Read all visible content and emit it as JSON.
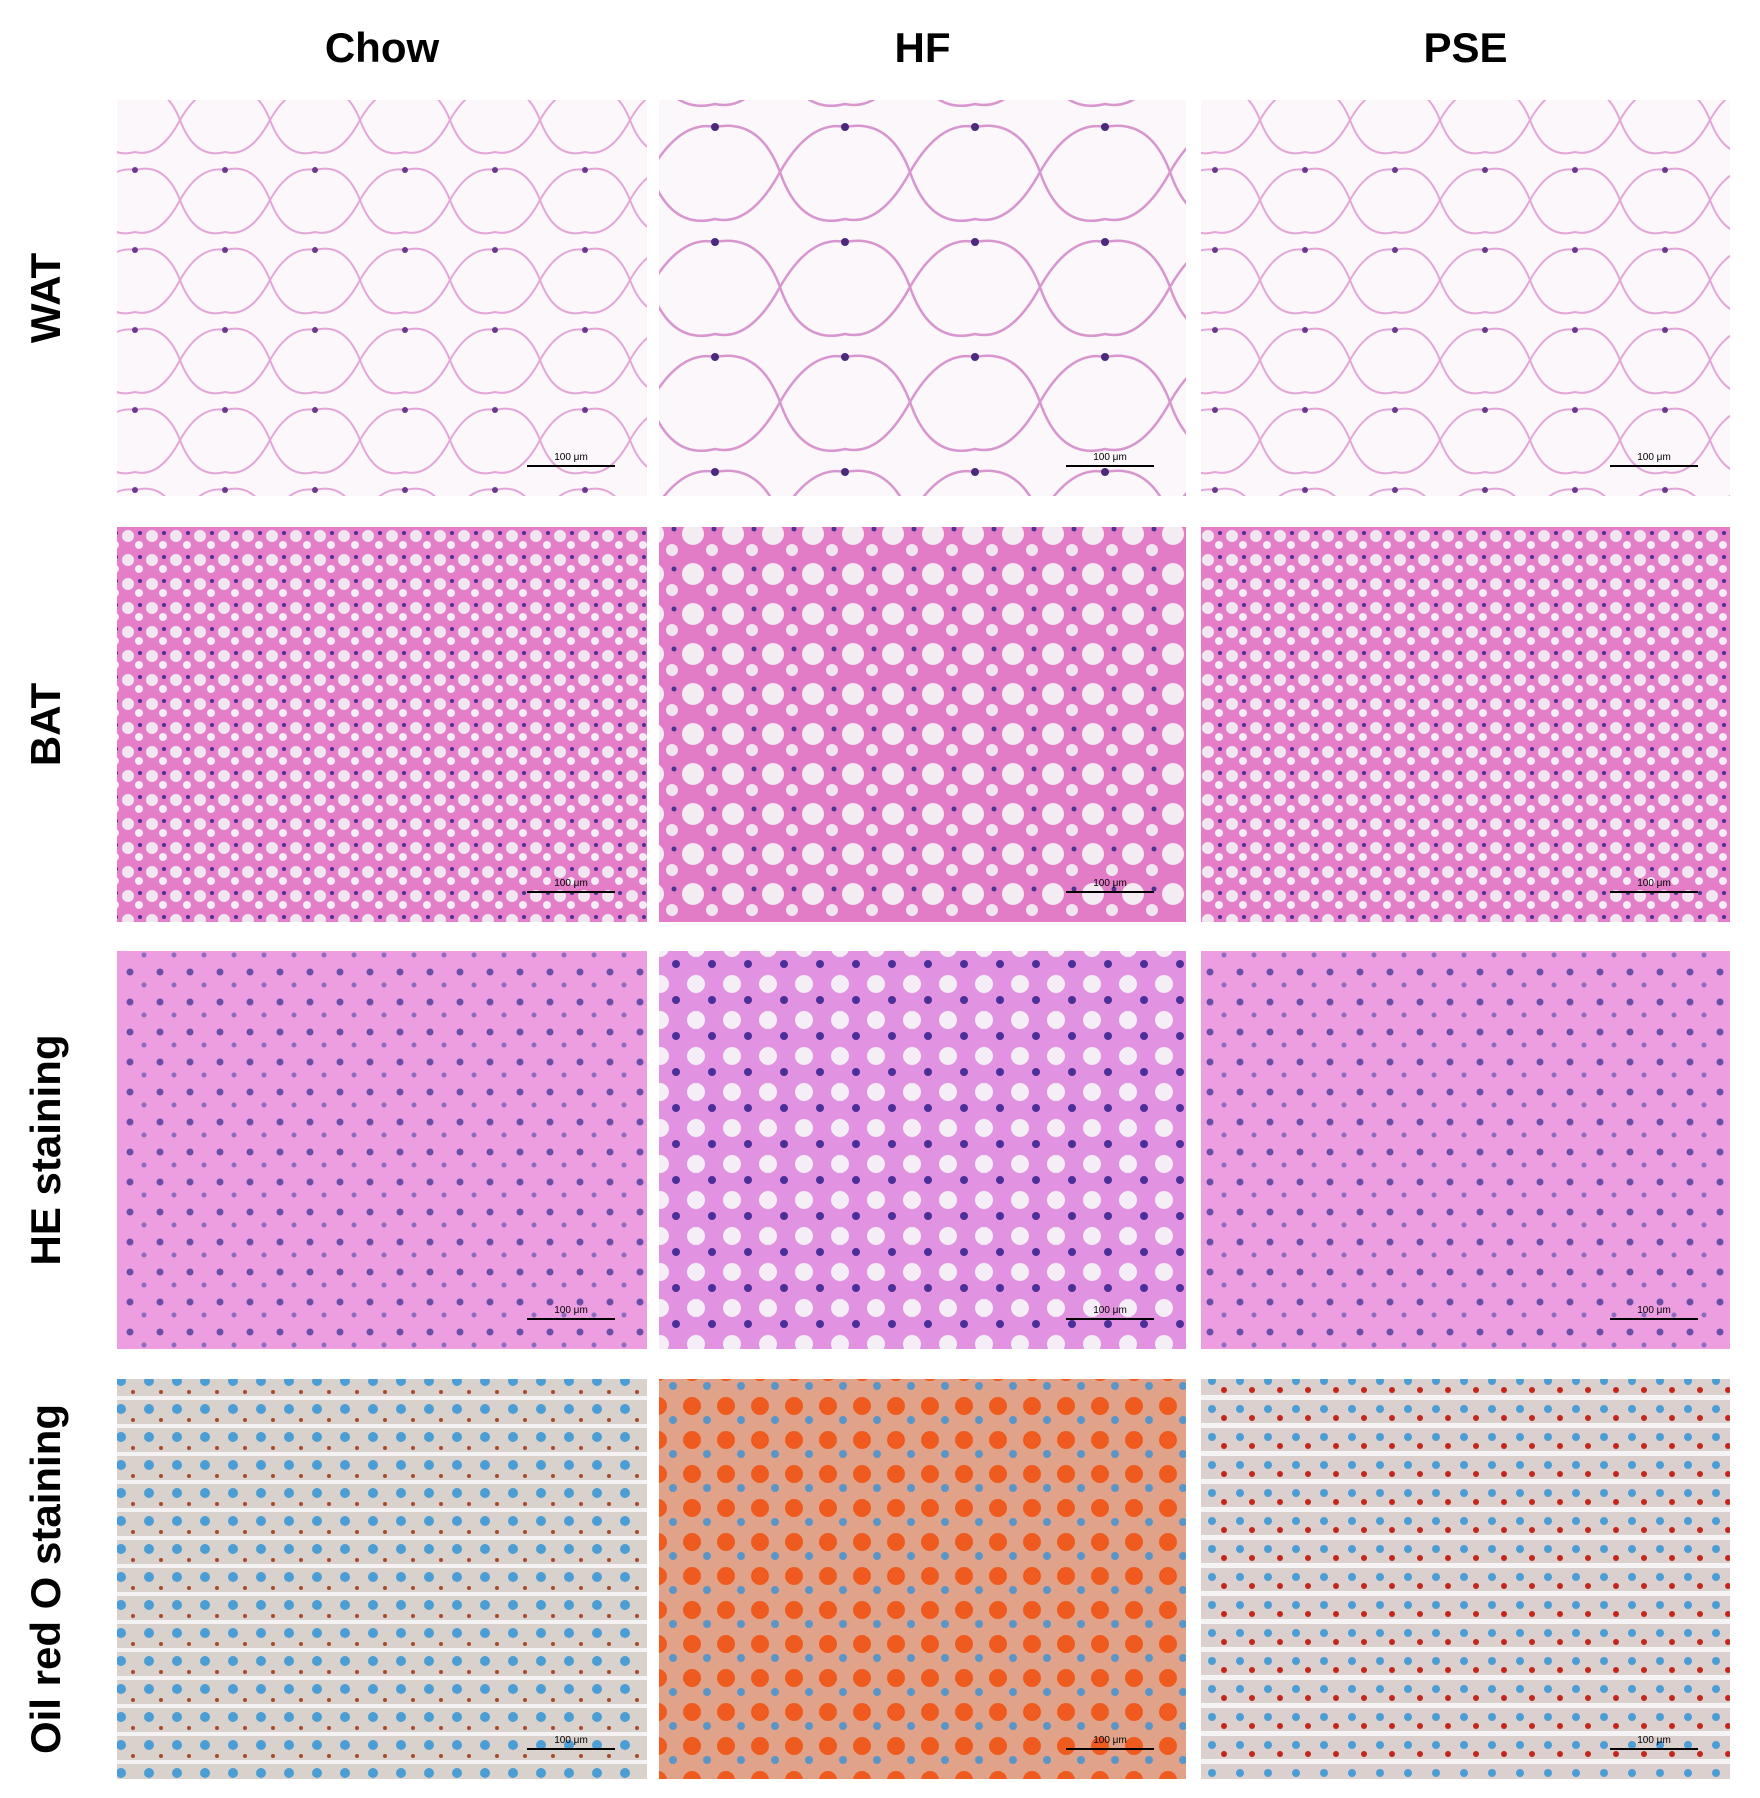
{
  "columns": [
    "Chow",
    "HF",
    "PSE"
  ],
  "rows": [
    {
      "label": "WAT",
      "panels": [
        {
          "scale_bar": "100 μm"
        },
        {
          "scale_bar": "100 μm"
        },
        {
          "scale_bar": "100 μm"
        }
      ]
    },
    {
      "label": "BAT",
      "panels": [
        {
          "scale_bar": "100 μm"
        },
        {
          "scale_bar": "100 μm"
        },
        {
          "scale_bar": "100 μm"
        }
      ]
    },
    {
      "label": "HE staining",
      "panels": [
        {
          "scale_bar": "100 μm"
        },
        {
          "scale_bar": "100 μm"
        },
        {
          "scale_bar": "100 μm"
        }
      ]
    },
    {
      "label": "Oil red O staining",
      "panels": [
        {
          "scale_bar": "100 μm"
        },
        {
          "scale_bar": "100 μm"
        },
        {
          "scale_bar": "100 μm"
        }
      ]
    }
  ]
}
